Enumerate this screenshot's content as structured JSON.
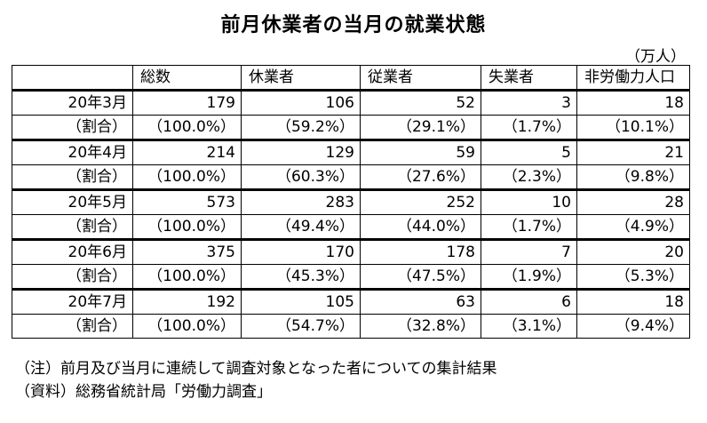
{
  "title": "前月休業者の当月の就業状態",
  "unit": "（万人）",
  "columns": [
    "",
    "総数",
    "休業者",
    "従業者",
    "失業者",
    "非労働力人口"
  ],
  "groups": [
    {
      "month": "20年3月",
      "values": [
        "179",
        "106",
        "52",
        "3",
        "18"
      ],
      "ratio_label": "（割合）",
      "ratios": [
        "（100.0%）",
        "（59.2%）",
        "（29.1%）",
        "（1.7%）",
        "（10.1%）"
      ]
    },
    {
      "month": "20年4月",
      "values": [
        "214",
        "129",
        "59",
        "5",
        "21"
      ],
      "ratio_label": "（割合）",
      "ratios": [
        "（100.0%）",
        "（60.3%）",
        "（27.6%）",
        "（2.3%）",
        "（9.8%）"
      ]
    },
    {
      "month": "20年5月",
      "values": [
        "573",
        "283",
        "252",
        "10",
        "28"
      ],
      "ratio_label": "（割合）",
      "ratios": [
        "（100.0%）",
        "（49.4%）",
        "（44.0%）",
        "（1.7%）",
        "（4.9%）"
      ]
    },
    {
      "month": "20年6月",
      "values": [
        "375",
        "170",
        "178",
        "7",
        "20"
      ],
      "ratio_label": "（割合）",
      "ratios": [
        "（100.0%）",
        "（45.3%）",
        "（47.5%）",
        "（1.9%）",
        "（5.3%）"
      ]
    },
    {
      "month": "20年7月",
      "values": [
        "192",
        "105",
        "63",
        "6",
        "18"
      ],
      "ratio_label": "（割合）",
      "ratios": [
        "（100.0%）",
        "（54.7%）",
        "（32.8%）",
        "（3.1%）",
        "（9.4%）"
      ]
    }
  ],
  "notes": [
    "（注）前月及び当月に連続して調査対象となった者についての集計結果",
    "（資料）総務省統計局「労働力調査」"
  ]
}
